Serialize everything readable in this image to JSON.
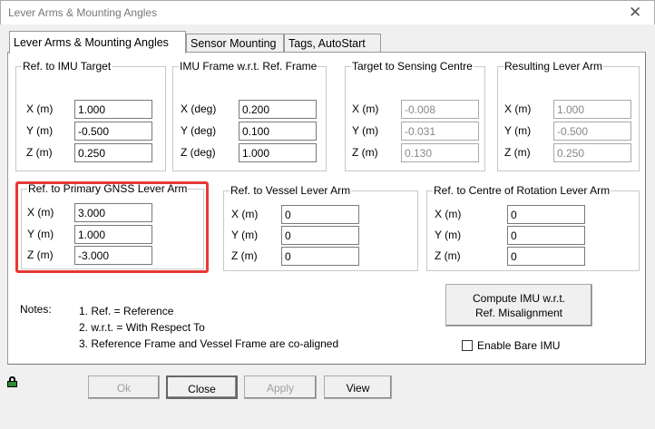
{
  "window": {
    "title": "Lever Arms & Mounting Angles",
    "close_icon": "close-icon"
  },
  "tabs": [
    {
      "label": "Lever Arms & Mounting Angles",
      "active": true
    },
    {
      "label": "Sensor Mounting"
    },
    {
      "label": "Tags, AutoStart"
    }
  ],
  "groups": {
    "imu_target": {
      "title": "Ref. to IMU Target",
      "labels": [
        "X (m)",
        "Y (m)",
        "Z (m)"
      ],
      "values": [
        "1.000",
        "-0.500",
        "0.250"
      ]
    },
    "imu_frame": {
      "title": "IMU Frame w.r.t. Ref. Frame",
      "labels": [
        "X (deg)",
        "Y (deg)",
        "Z (deg)"
      ],
      "values": [
        "0.200",
        "0.100",
        "1.000"
      ]
    },
    "sensing": {
      "title": "Target to Sensing Centre",
      "labels": [
        "X (m)",
        "Y (m)",
        "Z (m)"
      ],
      "values": [
        "-0.008",
        "-0.031",
        "0.130"
      ]
    },
    "resulting": {
      "title": "Resulting Lever Arm",
      "labels": [
        "X (m)",
        "Y (m)",
        "Z (m)"
      ],
      "values": [
        "1.000",
        "-0.500",
        "0.250"
      ]
    },
    "gnss": {
      "title": "Ref. to Primary GNSS Lever Arm",
      "labels": [
        "X (m)",
        "Y (m)",
        "Z (m)"
      ],
      "values": [
        "3.000",
        "1.000",
        "-3.000"
      ],
      "highlight": "#e53935"
    },
    "vessel": {
      "title": "Ref. to Vessel Lever Arm",
      "labels": [
        "X (m)",
        "Y (m)",
        "Z (m)"
      ],
      "values": [
        "0",
        "0",
        "0"
      ]
    },
    "rotation": {
      "title": "Ref. to Centre of Rotation Lever Arm",
      "labels": [
        "X (m)",
        "Y (m)",
        "Z (m)"
      ],
      "values": [
        "0",
        "0",
        "0"
      ]
    }
  },
  "notes": {
    "label": "Notes:",
    "items": [
      "1. Ref. = Reference",
      "2. w.r.t. = With Respect To",
      "3. Reference Frame and Vessel Frame are co-aligned"
    ]
  },
  "compute_button": {
    "line1": "Compute IMU w.r.t.",
    "line2": "Ref. Misalignment"
  },
  "bare_imu": {
    "label": "Enable Bare IMU",
    "checked": false
  },
  "footer": {
    "lock_icon": "lock-icon",
    "ok": "Ok",
    "close": "Close",
    "apply": "Apply",
    "view": "View"
  }
}
